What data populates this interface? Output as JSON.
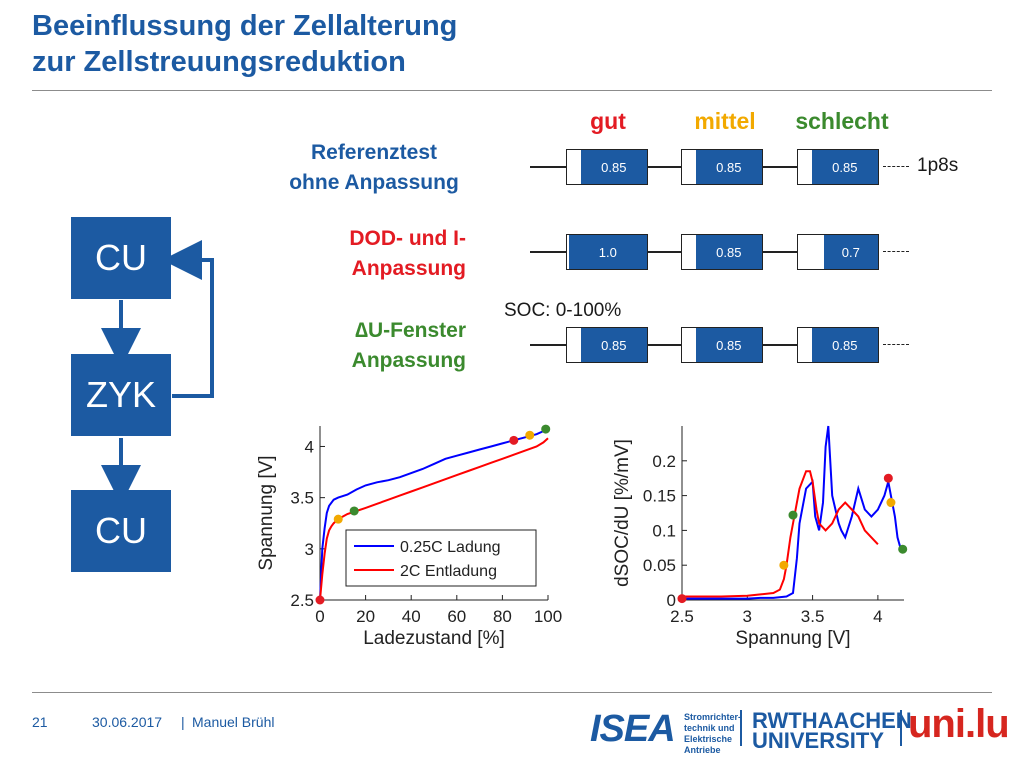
{
  "slide": {
    "title_line1": "Beeinflussung der Zellalterung",
    "title_line2": "zur Zellstreuungsreduktion",
    "page_number": "21",
    "date": "30.06.2017",
    "separator": "|",
    "author": "Manuel Brühl"
  },
  "flow": {
    "blocks": [
      "CU",
      "ZYK",
      "CU"
    ]
  },
  "table": {
    "columns": [
      {
        "label": "gut",
        "color": "#e31b23"
      },
      {
        "label": "mittel",
        "color": "#f2a900"
      },
      {
        "label": "schlecht",
        "color": "#3b8a2e"
      }
    ],
    "rows": [
      {
        "label_line1": "Referenztest",
        "label_line2": "ohne Anpassung",
        "color": "#1c5aa2",
        "values": [
          "0.85",
          "0.85",
          "0.85"
        ],
        "fill_fraction": [
          0.85,
          0.85,
          0.85
        ]
      },
      {
        "label_line1": "DOD- und I-",
        "label_line2": "Anpassung",
        "color": "#e31b23",
        "values": [
          "1.0",
          "0.85",
          "0.7"
        ],
        "fill_fraction": [
          1.0,
          0.85,
          0.7
        ]
      },
      {
        "label_line1": "∆U-Fenster",
        "label_line2": "Anpassung",
        "color": "#3b8a2e",
        "values": [
          "0.85",
          "0.85",
          "0.85"
        ],
        "fill_fraction": [
          0.85,
          0.85,
          0.85
        ]
      }
    ],
    "config_label": "1p8s",
    "soc_label": "SOC: 0-100%"
  },
  "logos": {
    "isea": "ISEA",
    "isea_sub": [
      "Stromrichter-",
      "technik und",
      "Elektrische",
      "Antriebe"
    ],
    "rwth_line1": "RWTHAACHEN",
    "rwth_line2": "UNIVERSITY",
    "unilu": "uni.lu"
  },
  "chart_data": [
    {
      "type": "line",
      "xlabel": "Ladezustand [%]",
      "ylabel": "Spannung [V]",
      "xlim": [
        0,
        100
      ],
      "ylim": [
        2.5,
        4.2
      ],
      "xticks": [
        0,
        20,
        40,
        60,
        80,
        100
      ],
      "yticks": [
        2.5,
        3,
        3.5,
        4
      ],
      "legend_position": "bottom-right",
      "series": [
        {
          "name": "0.25C Ladung",
          "color": "#0000ff",
          "x": [
            0,
            1,
            2,
            3,
            4,
            6,
            8,
            12,
            16,
            20,
            25,
            30,
            35,
            40,
            45,
            50,
            55,
            60,
            65,
            70,
            75,
            80,
            85,
            90,
            95,
            98,
            100
          ],
          "y": [
            2.5,
            3.0,
            3.2,
            3.35,
            3.42,
            3.48,
            3.5,
            3.53,
            3.58,
            3.62,
            3.65,
            3.67,
            3.7,
            3.74,
            3.78,
            3.83,
            3.88,
            3.91,
            3.94,
            3.97,
            4.0,
            4.03,
            4.06,
            4.09,
            4.12,
            4.15,
            4.18
          ]
        },
        {
          "name": "2C Entladung",
          "color": "#ff0000",
          "x": [
            0,
            1,
            2,
            3,
            4,
            5,
            6,
            8,
            12,
            16,
            20,
            25,
            30,
            35,
            40,
            45,
            50,
            55,
            60,
            65,
            70,
            75,
            80,
            85,
            90,
            95,
            98,
            100
          ],
          "y": [
            2.5,
            2.75,
            2.95,
            3.1,
            3.18,
            3.22,
            3.25,
            3.29,
            3.34,
            3.37,
            3.4,
            3.44,
            3.48,
            3.52,
            3.56,
            3.6,
            3.64,
            3.68,
            3.72,
            3.76,
            3.8,
            3.84,
            3.88,
            3.92,
            3.96,
            4.0,
            4.04,
            4.08
          ]
        }
      ],
      "markers": [
        {
          "x": 0,
          "y": 2.5,
          "color": "#e31b23"
        },
        {
          "x": 8,
          "y": 3.29,
          "color": "#f2a900"
        },
        {
          "x": 15,
          "y": 3.37,
          "color": "#3b8a2e"
        },
        {
          "x": 85,
          "y": 4.06,
          "color": "#e31b23"
        },
        {
          "x": 92,
          "y": 4.11,
          "color": "#f2a900"
        },
        {
          "x": 99,
          "y": 4.17,
          "color": "#3b8a2e"
        }
      ]
    },
    {
      "type": "line",
      "xlabel": "Spannung [V]",
      "ylabel": "dSOC/dU [%/mV]",
      "xlim": [
        2.5,
        4.2
      ],
      "ylim": [
        0,
        0.25
      ],
      "xticks": [
        2.5,
        3,
        3.5,
        4
      ],
      "yticks": [
        0,
        0.05,
        0.1,
        0.15,
        0.2
      ],
      "series": [
        {
          "name": "",
          "color": "#0000ff",
          "x": [
            2.5,
            2.8,
            3.0,
            3.1,
            3.2,
            3.3,
            3.35,
            3.38,
            3.4,
            3.45,
            3.5,
            3.52,
            3.55,
            3.58,
            3.6,
            3.62,
            3.65,
            3.7,
            3.72,
            3.75,
            3.8,
            3.85,
            3.9,
            3.95,
            4.0,
            4.05,
            4.08,
            4.1,
            4.13,
            4.15,
            4.18
          ],
          "y": [
            0.002,
            0.002,
            0.002,
            0.003,
            0.003,
            0.005,
            0.01,
            0.06,
            0.11,
            0.16,
            0.17,
            0.12,
            0.1,
            0.14,
            0.22,
            0.25,
            0.15,
            0.11,
            0.1,
            0.09,
            0.12,
            0.16,
            0.13,
            0.12,
            0.13,
            0.15,
            0.17,
            0.15,
            0.12,
            0.09,
            0.07
          ]
        },
        {
          "name": "",
          "color": "#ff0000",
          "x": [
            2.5,
            2.8,
            3.0,
            3.1,
            3.2,
            3.25,
            3.28,
            3.3,
            3.33,
            3.36,
            3.4,
            3.45,
            3.48,
            3.5,
            3.53,
            3.55,
            3.6,
            3.65,
            3.7,
            3.75,
            3.8,
            3.85,
            3.9,
            3.95,
            4.0
          ],
          "y": [
            0.005,
            0.005,
            0.006,
            0.008,
            0.01,
            0.015,
            0.03,
            0.05,
            0.09,
            0.12,
            0.16,
            0.185,
            0.185,
            0.17,
            0.13,
            0.11,
            0.1,
            0.11,
            0.13,
            0.14,
            0.13,
            0.12,
            0.1,
            0.09,
            0.08
          ]
        }
      ],
      "markers": [
        {
          "x": 2.5,
          "y": 0.002,
          "color": "#e31b23"
        },
        {
          "x": 3.28,
          "y": 0.05,
          "color": "#f2a900"
        },
        {
          "x": 3.35,
          "y": 0.122,
          "color": "#3b8a2e"
        },
        {
          "x": 4.08,
          "y": 0.175,
          "color": "#e31b23"
        },
        {
          "x": 4.1,
          "y": 0.14,
          "color": "#f2a900"
        },
        {
          "x": 4.19,
          "y": 0.073,
          "color": "#3b8a2e"
        }
      ]
    }
  ]
}
